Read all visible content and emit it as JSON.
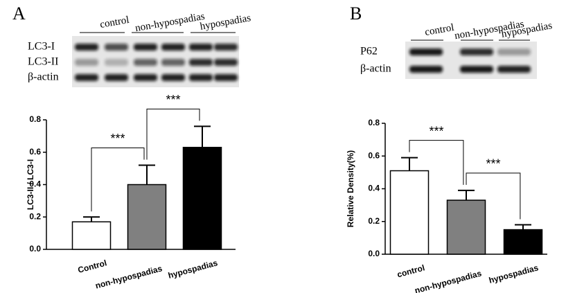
{
  "chart_data": [
    {
      "type": "bar",
      "panel_label": "A",
      "blot_groups": [
        "control",
        "non-hypospadias",
        "hypospadias"
      ],
      "blot_rows": [
        "LC3-I",
        "LC3-II",
        "β-actin"
      ],
      "ylabel": "LC3-II / LC3-I",
      "categories": [
        "Control",
        "non-hypospadias",
        "hypospadias"
      ],
      "values": [
        0.17,
        0.4,
        0.63
      ],
      "errors": [
        0.03,
        0.12,
        0.13
      ],
      "colors": [
        "#ffffff",
        "#808080",
        "#000000"
      ],
      "ylim": [
        0,
        0.8
      ],
      "yticks": [
        {
          "value": 0,
          "label": "0.0"
        },
        0.2,
        0.4,
        0.6,
        0.8
      ],
      "annotations": [
        "***",
        "***"
      ]
    },
    {
      "type": "bar",
      "panel_label": "B",
      "blot_groups": [
        "control",
        "non-hypospadias",
        "hypospadias"
      ],
      "blot_rows": [
        "P62",
        "β-actin"
      ],
      "ylabel": "Relative Density(%)",
      "categories": [
        "control",
        "non-hypospadias",
        "hypospadias"
      ],
      "values": [
        0.51,
        0.33,
        0.15
      ],
      "errors": [
        0.08,
        0.06,
        0.03
      ],
      "colors": [
        "#ffffff",
        "#808080",
        "#000000"
      ],
      "ylim": [
        0,
        0.8
      ],
      "yticks": [
        {
          "value": 0,
          "label": "0.0"
        },
        0.2,
        0.4,
        0.6,
        0.8
      ],
      "annotations": [
        "***",
        "***"
      ]
    }
  ]
}
